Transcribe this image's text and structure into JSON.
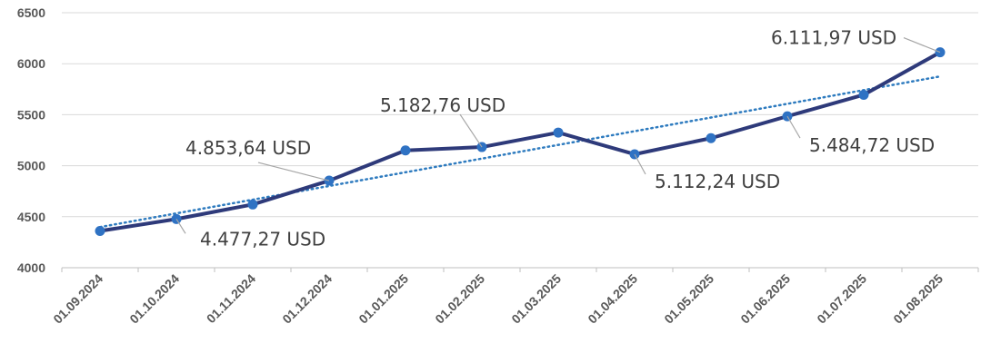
{
  "chart_data": {
    "type": "line",
    "x": [
      "01.09.2024",
      "01.10.2024",
      "01.11.2024",
      "01.12.2024",
      "01.01.2025",
      "01.02.2025",
      "01.03.2025",
      "01.04.2025",
      "01.05.2025",
      "01.06.2025",
      "01.07.2025",
      "01.08.2025"
    ],
    "series": [
      {
        "values": [
          4360,
          4477.27,
          4620,
          4853.64,
          5150,
          5182.76,
          5325,
          5112.24,
          5270,
          5484.72,
          5695,
          6111.97
        ],
        "color": "#2e3a7a",
        "marker_color": "#2f72c3"
      }
    ],
    "trendline": {
      "type": "linear",
      "style": "dotted",
      "color": "#2e7bbf"
    },
    "y_ticks": [
      "4000",
      "4500",
      "5000",
      "5500",
      "6000",
      "6500"
    ],
    "ylim": [
      4000,
      6500
    ],
    "grid": "horizontal",
    "data_labels": [
      {
        "index": 1,
        "text": "4.477,27 USD"
      },
      {
        "index": 3,
        "text": "4.853,64 USD"
      },
      {
        "index": 5,
        "text": "5.182,76 USD"
      },
      {
        "index": 7,
        "text": "5.112,24 USD"
      },
      {
        "index": 9,
        "text": "5.484,72 USD"
      },
      {
        "index": 11,
        "text": "6.111,97 USD"
      }
    ],
    "title": "",
    "xlabel": "",
    "ylabel": ""
  }
}
